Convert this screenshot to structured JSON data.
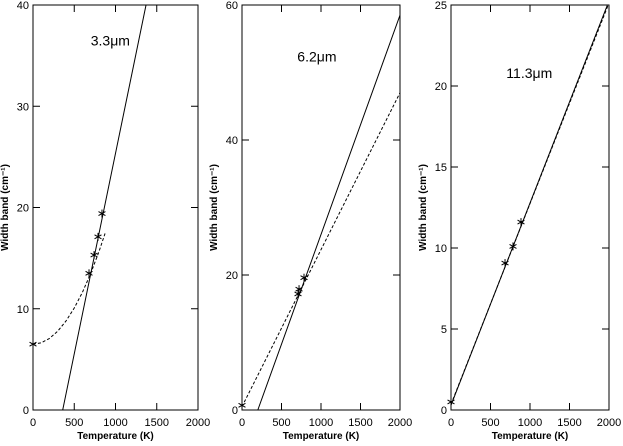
{
  "chart_data": [
    {
      "type": "line",
      "annotation": "3.3μm",
      "xlabel": "Temperature (K)",
      "ylabel": "Width band (cm⁻¹)",
      "xlim": [
        0,
        2000
      ],
      "ylim": [
        0,
        40
      ],
      "xticks": [
        0,
        500,
        1000,
        1500,
        2000
      ],
      "yticks": [
        0,
        10,
        20,
        30,
        40
      ],
      "series": [
        {
          "dash": "solid",
          "x": [
            360,
            1370
          ],
          "values": [
            0,
            40
          ]
        },
        {
          "dash": "dashed",
          "x": [
            0,
            100,
            200,
            300,
            400,
            500,
            600,
            700,
            800,
            880
          ],
          "values": [
            6.5,
            6.64,
            7.07,
            7.79,
            8.79,
            10.07,
            11.64,
            13.5,
            15.65,
            17.6
          ]
        },
        {
          "marker": "star",
          "x": [
            0,
            679,
            740,
            788,
            836
          ],
          "values": [
            6.5,
            13.5,
            15.3,
            17.1,
            19.4
          ]
        }
      ]
    },
    {
      "type": "line",
      "annotation": "6.2μm",
      "xlabel": "Temperature (K)",
      "ylabel": "Width band (cm⁻¹)",
      "xlim": [
        0,
        2000
      ],
      "ylim": [
        0,
        60
      ],
      "xticks": [
        0,
        500,
        1000,
        1500,
        2000
      ],
      "yticks": [
        0,
        20,
        40,
        60
      ],
      "series": [
        {
          "dash": "solid",
          "x": [
            200,
            2000
          ],
          "values": [
            0,
            58.5
          ]
        },
        {
          "dash": "dashed",
          "x": [
            0,
            2000
          ],
          "values": [
            0.5,
            47
          ]
        },
        {
          "marker": "star",
          "x": [
            0,
            709,
            722,
            785
          ],
          "values": [
            0.7,
            17.2,
            17.9,
            19.6
          ]
        }
      ]
    },
    {
      "type": "line",
      "annotation": "11.3μm",
      "xlabel": "Temperature (K)",
      "ylabel": "Width band (cm⁻¹)",
      "xlim": [
        0,
        2000
      ],
      "ylim": [
        0,
        25
      ],
      "xticks": [
        0,
        500,
        1000,
        1500,
        2000
      ],
      "yticks": [
        0,
        5,
        10,
        15,
        20,
        25
      ],
      "series": [
        {
          "dash": "solid",
          "x": [
            0,
            1980
          ],
          "values": [
            0.3,
            25
          ]
        },
        {
          "dash": "dashed",
          "x": [
            0,
            1990
          ],
          "values": [
            0.35,
            25
          ]
        },
        {
          "marker": "star",
          "x": [
            0,
            684,
            785,
            886
          ],
          "values": [
            0.5,
            9.07,
            10.1,
            11.6
          ]
        }
      ]
    }
  ]
}
